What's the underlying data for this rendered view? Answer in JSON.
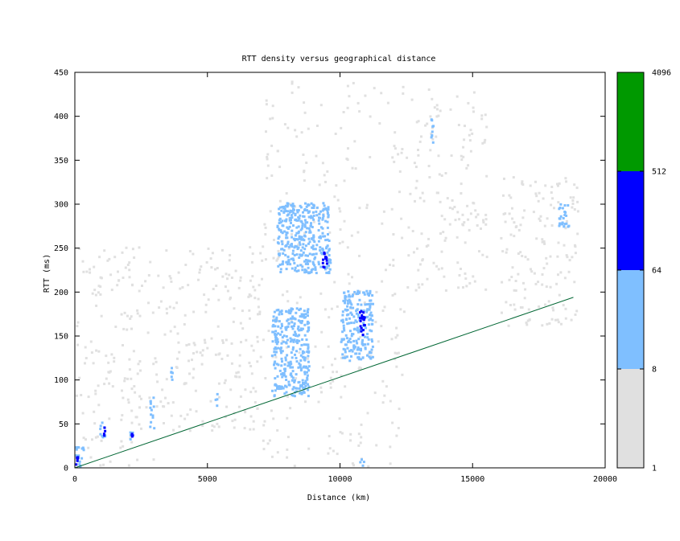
{
  "chart_data": {
    "type": "heatmap",
    "title": "RTT density versus geographical distance",
    "xlabel": "Distance (km)",
    "ylabel": "RTT (ms)",
    "xlim": [
      0,
      20000
    ],
    "ylim": [
      0,
      450
    ],
    "x_ticks": [
      "0",
      "5000",
      "10000",
      "15000",
      "20000"
    ],
    "y_ticks": [
      "0",
      "50",
      "100",
      "150",
      "200",
      "250",
      "300",
      "350",
      "400",
      "450"
    ],
    "colorbar": {
      "scale": "log",
      "ticks": [
        "1",
        "8",
        "64",
        "512",
        "4096"
      ],
      "bands": [
        {
          "from": 1,
          "to": 8,
          "color": "#e0e0e0"
        },
        {
          "from": 8,
          "to": 64,
          "color": "#7fbfff"
        },
        {
          "from": 64,
          "to": 512,
          "color": "#0000ff"
        },
        {
          "from": 512,
          "to": 4096,
          "color": "#009900"
        }
      ]
    },
    "reference_line": {
      "color": "#006633",
      "points": [
        [
          0,
          0
        ],
        [
          18800,
          194
        ]
      ]
    },
    "density_regions": [
      {
        "x": [
          0,
          300
        ],
        "y": [
          0,
          25
        ],
        "level": 2
      },
      {
        "x": [
          0,
          100
        ],
        "y": [
          0,
          20
        ],
        "level": 3
      },
      {
        "x": [
          900,
          1100
        ],
        "y": [
          30,
          50
        ],
        "level": 2
      },
      {
        "x": [
          1050,
          1100
        ],
        "y": [
          32,
          45
        ],
        "level": 3
      },
      {
        "x": [
          2050,
          2150
        ],
        "y": [
          28,
          45
        ],
        "level": 2
      },
      {
        "x": [
          2100,
          2150
        ],
        "y": [
          30,
          38
        ],
        "level": 3
      },
      {
        "x": [
          2800,
          2950
        ],
        "y": [
          40,
          80
        ],
        "level": 2
      },
      {
        "x": [
          3550,
          3650
        ],
        "y": [
          90,
          115
        ],
        "level": 2
      },
      {
        "x": [
          5250,
          5350
        ],
        "y": [
          65,
          85
        ],
        "level": 2
      },
      {
        "x": [
          7400,
          8800
        ],
        "y": [
          80,
          180
        ],
        "level": 2
      },
      {
        "x": [
          7600,
          9600
        ],
        "y": [
          220,
          300
        ],
        "level": 2
      },
      {
        "x": [
          9300,
          9500
        ],
        "y": [
          225,
          245
        ],
        "level": 3
      },
      {
        "x": [
          10000,
          11200
        ],
        "y": [
          120,
          200
        ],
        "level": 2
      },
      {
        "x": [
          10700,
          10900
        ],
        "y": [
          150,
          180
        ],
        "level": 3
      },
      {
        "x": [
          10700,
          10900
        ],
        "y": [
          0,
          10
        ],
        "level": 2
      },
      {
        "x": [
          13400,
          13500
        ],
        "y": [
          360,
          400
        ],
        "level": 2
      },
      {
        "x": [
          18200,
          18600
        ],
        "y": [
          270,
          300
        ],
        "level": 2
      }
    ]
  }
}
